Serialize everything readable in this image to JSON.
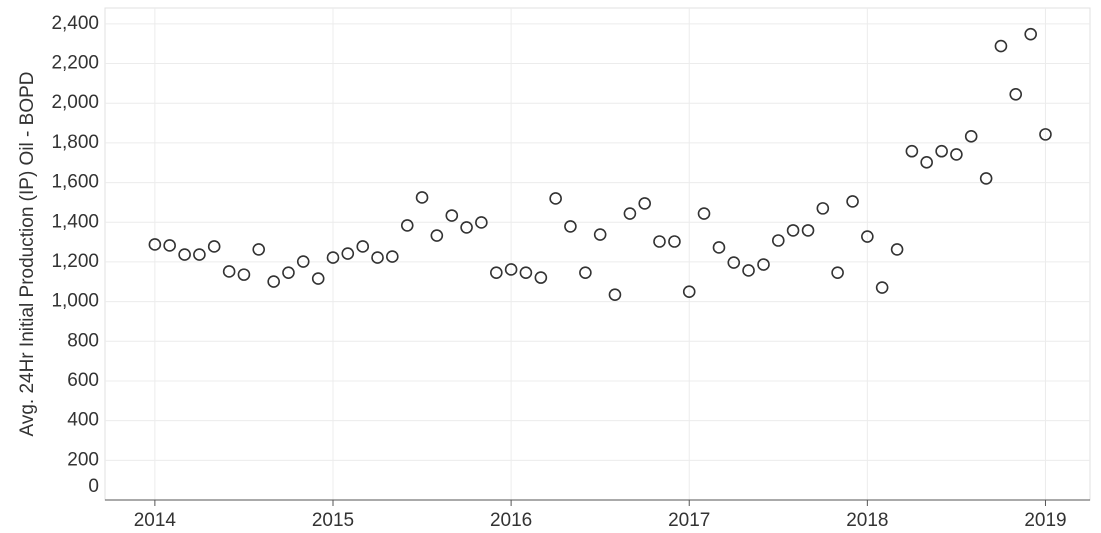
{
  "chart_data": {
    "type": "scatter",
    "ylabel": "Avg. 24Hr Initial Production (IP) Oil - BOPD",
    "series": [
      {
        "color": "#333333",
        "x": [
          2014,
          2014.083,
          2014.167,
          2014.25,
          2014.333,
          2014.417,
          2014.5,
          2014.583,
          2014.667,
          2014.75,
          2014.833,
          2014.917,
          2015,
          2015.083,
          2015.167,
          2015.25,
          2015.333,
          2015.417,
          2015.5,
          2015.583,
          2015.667,
          2015.75,
          2015.833,
          2015.917,
          2016,
          2016.083,
          2016.167,
          2016.25,
          2016.333,
          2016.417,
          2016.5,
          2016.583,
          2016.667,
          2016.75,
          2016.833,
          2016.917,
          2017,
          2017.083,
          2017.167,
          2017.25,
          2017.333,
          2017.417,
          2017.5,
          2017.583,
          2017.667,
          2017.75,
          2017.833,
          2017.917,
          2018,
          2018.083,
          2018.167,
          2018.25,
          2018.333,
          2018.417,
          2018.5,
          2018.583,
          2018.667,
          2018.75,
          2018.833,
          2018.917,
          2019
        ],
        "values": [
          1288,
          1283,
          1237,
          1237,
          1278,
          1152,
          1136,
          1263,
          1101,
          1146,
          1202,
          1116,
          1222,
          1242,
          1278,
          1222,
          1227,
          1384,
          1525,
          1333,
          1434,
          1374,
          1399,
          1146,
          1162,
          1146,
          1121,
          1520,
          1379,
          1146,
          1338,
          1035,
          1444,
          1495,
          1303,
          1303,
          1050,
          1444,
          1273,
          1197,
          1157,
          1187,
          1308,
          1359,
          1359,
          1470,
          1146,
          1505,
          1328,
          1071,
          1263,
          1758,
          1702,
          1758,
          1742,
          1833,
          1621,
          2288,
          2045,
          2348,
          1843
        ]
      }
    ],
    "xlim": [
      2013.72,
      2019.25
    ],
    "xticks": [
      2014,
      2015,
      2016,
      2017,
      2018,
      2019
    ],
    "ylim": [
      0,
      2480
    ],
    "yticks": [
      0,
      200,
      400,
      600,
      800,
      {
        "value": 1000,
        "label": "1,000"
      },
      {
        "value": 1200,
        "label": "1,200"
      },
      {
        "value": 1400,
        "label": "1,400"
      },
      {
        "value": 1600,
        "label": "1,600"
      },
      {
        "value": 1800,
        "label": "1,800"
      },
      {
        "value": 2000,
        "label": "2,000"
      },
      {
        "value": 2200,
        "label": "2,200"
      },
      {
        "value": 2400,
        "label": "2,400"
      }
    ],
    "grid": true
  }
}
